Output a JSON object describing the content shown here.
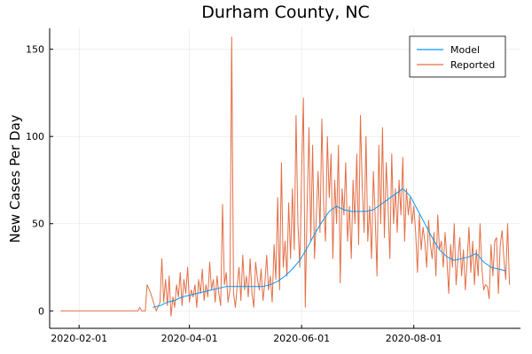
{
  "chart_data": {
    "type": "line",
    "title": "Durham County, NC",
    "xlabel": "",
    "ylabel": "New Cases Per Day",
    "x_axis": {
      "type": "date",
      "range": [
        "2020-01-16",
        "2020-09-28"
      ],
      "ticks": [
        "2020-02-01",
        "2020-04-01",
        "2020-06-01",
        "2020-08-01"
      ]
    },
    "y_axis": {
      "range": [
        -10,
        162
      ],
      "ticks": [
        0,
        50,
        100,
        150
      ]
    },
    "grid": true,
    "legend": "top-right",
    "series": [
      {
        "name": "Model",
        "color": "#009AFA",
        "points": [
          [
            "2020-03-12",
            2
          ],
          [
            "2020-03-16",
            3
          ],
          [
            "2020-03-20",
            5
          ],
          [
            "2020-03-24",
            6
          ],
          [
            "2020-03-28",
            8
          ],
          [
            "2020-04-01",
            9
          ],
          [
            "2020-04-05",
            10
          ],
          [
            "2020-04-09",
            11
          ],
          [
            "2020-04-13",
            12
          ],
          [
            "2020-04-17",
            13
          ],
          [
            "2020-04-21",
            14
          ],
          [
            "2020-04-25",
            14
          ],
          [
            "2020-04-29",
            14
          ],
          [
            "2020-05-03",
            14
          ],
          [
            "2020-05-07",
            14
          ],
          [
            "2020-05-11",
            14
          ],
          [
            "2020-05-15",
            15
          ],
          [
            "2020-05-19",
            17
          ],
          [
            "2020-05-23",
            20
          ],
          [
            "2020-05-27",
            24
          ],
          [
            "2020-05-31",
            29
          ],
          [
            "2020-06-04",
            36
          ],
          [
            "2020-06-08",
            44
          ],
          [
            "2020-06-12",
            51
          ],
          [
            "2020-06-16",
            57
          ],
          [
            "2020-06-20",
            60
          ],
          [
            "2020-06-24",
            58
          ],
          [
            "2020-06-28",
            57
          ],
          [
            "2020-07-02",
            57
          ],
          [
            "2020-07-06",
            57
          ],
          [
            "2020-07-10",
            58
          ],
          [
            "2020-07-14",
            61
          ],
          [
            "2020-07-18",
            64
          ],
          [
            "2020-07-22",
            67
          ],
          [
            "2020-07-26",
            70
          ],
          [
            "2020-07-30",
            66
          ],
          [
            "2020-08-03",
            58
          ],
          [
            "2020-08-07",
            50
          ],
          [
            "2020-08-11",
            42
          ],
          [
            "2020-08-15",
            35
          ],
          [
            "2020-08-19",
            31
          ],
          [
            "2020-08-23",
            29
          ],
          [
            "2020-08-27",
            30
          ],
          [
            "2020-08-31",
            31
          ],
          [
            "2020-09-04",
            33
          ],
          [
            "2020-09-08",
            28
          ],
          [
            "2020-09-12",
            25
          ],
          [
            "2020-09-16",
            24
          ],
          [
            "2020-09-20",
            23
          ]
        ]
      },
      {
        "name": "Reported",
        "color": "#E26F46",
        "points": [
          [
            "2020-01-22",
            0
          ],
          [
            "2020-02-01",
            0
          ],
          [
            "2020-02-15",
            0
          ],
          [
            "2020-03-01",
            0
          ],
          [
            "2020-03-04",
            0
          ],
          [
            "2020-03-05",
            2
          ],
          [
            "2020-03-06",
            0
          ],
          [
            "2020-03-08",
            0
          ],
          [
            "2020-03-09",
            15
          ],
          [
            "2020-03-11",
            10
          ],
          [
            "2020-03-13",
            3
          ],
          [
            "2020-03-14",
            0
          ],
          [
            "2020-03-16",
            5
          ],
          [
            "2020-03-17",
            30
          ],
          [
            "2020-03-18",
            5
          ],
          [
            "2020-03-19",
            18
          ],
          [
            "2020-03-20",
            3
          ],
          [
            "2020-03-21",
            20
          ],
          [
            "2020-03-22",
            -3
          ],
          [
            "2020-03-23",
            8
          ],
          [
            "2020-03-24",
            2
          ],
          [
            "2020-03-25",
            15
          ],
          [
            "2020-03-26",
            8
          ],
          [
            "2020-03-27",
            22
          ],
          [
            "2020-03-28",
            3
          ],
          [
            "2020-03-29",
            18
          ],
          [
            "2020-03-30",
            10
          ],
          [
            "2020-03-31",
            25
          ],
          [
            "2020-04-01",
            5
          ],
          [
            "2020-04-02",
            12
          ],
          [
            "2020-04-03",
            8
          ],
          [
            "2020-04-04",
            15
          ],
          [
            "2020-04-05",
            2
          ],
          [
            "2020-04-06",
            18
          ],
          [
            "2020-04-07",
            10
          ],
          [
            "2020-04-08",
            24
          ],
          [
            "2020-04-09",
            6
          ],
          [
            "2020-04-10",
            15
          ],
          [
            "2020-04-11",
            8
          ],
          [
            "2020-04-12",
            28
          ],
          [
            "2020-04-13",
            12
          ],
          [
            "2020-04-14",
            18
          ],
          [
            "2020-04-15",
            5
          ],
          [
            "2020-04-16",
            20
          ],
          [
            "2020-04-17",
            10
          ],
          [
            "2020-04-18",
            3
          ],
          [
            "2020-04-19",
            61
          ],
          [
            "2020-04-20",
            15
          ],
          [
            "2020-04-21",
            22
          ],
          [
            "2020-04-22",
            5
          ],
          [
            "2020-04-23",
            12
          ],
          [
            "2020-04-24",
            157
          ],
          [
            "2020-04-25",
            10
          ],
          [
            "2020-04-26",
            2
          ],
          [
            "2020-04-27",
            15
          ],
          [
            "2020-04-28",
            25
          ],
          [
            "2020-04-29",
            6
          ],
          [
            "2020-04-30",
            32
          ],
          [
            "2020-05-01",
            12
          ],
          [
            "2020-05-02",
            20
          ],
          [
            "2020-05-03",
            8
          ],
          [
            "2020-05-04",
            30
          ],
          [
            "2020-05-05",
            10
          ],
          [
            "2020-05-06",
            2
          ],
          [
            "2020-05-07",
            28
          ],
          [
            "2020-05-08",
            18
          ],
          [
            "2020-05-09",
            12
          ],
          [
            "2020-05-10",
            24
          ],
          [
            "2020-05-11",
            6
          ],
          [
            "2020-05-12",
            16
          ],
          [
            "2020-05-13",
            32
          ],
          [
            "2020-05-14",
            12
          ],
          [
            "2020-05-15",
            20
          ],
          [
            "2020-05-16",
            5
          ],
          [
            "2020-05-17",
            38
          ],
          [
            "2020-05-18",
            18
          ],
          [
            "2020-05-19",
            65
          ],
          [
            "2020-05-20",
            12
          ],
          [
            "2020-05-21",
            85
          ],
          [
            "2020-05-22",
            25
          ],
          [
            "2020-05-23",
            40
          ],
          [
            "2020-05-24",
            20
          ],
          [
            "2020-05-25",
            62
          ],
          [
            "2020-05-26",
            30
          ],
          [
            "2020-05-27",
            70
          ],
          [
            "2020-05-28",
            35
          ],
          [
            "2020-05-29",
            112
          ],
          [
            "2020-05-30",
            50
          ],
          [
            "2020-05-31",
            25
          ],
          [
            "2020-06-01",
            80
          ],
          [
            "2020-06-02",
            122
          ],
          [
            "2020-06-03",
            2
          ],
          [
            "2020-06-04",
            60
          ],
          [
            "2020-06-05",
            105
          ],
          [
            "2020-06-06",
            40
          ],
          [
            "2020-06-07",
            95
          ],
          [
            "2020-06-08",
            30
          ],
          [
            "2020-06-09",
            55
          ],
          [
            "2020-06-10",
            80
          ],
          [
            "2020-06-11",
            45
          ],
          [
            "2020-06-12",
            110
          ],
          [
            "2020-06-13",
            60
          ],
          [
            "2020-06-14",
            40
          ],
          [
            "2020-06-15",
            100
          ],
          [
            "2020-06-16",
            65
          ],
          [
            "2020-06-17",
            90
          ],
          [
            "2020-06-18",
            30
          ],
          [
            "2020-06-19",
            75
          ],
          [
            "2020-06-20",
            50
          ],
          [
            "2020-06-21",
            95
          ],
          [
            "2020-06-22",
            16
          ],
          [
            "2020-06-23",
            70
          ],
          [
            "2020-06-24",
            55
          ],
          [
            "2020-06-25",
            85
          ],
          [
            "2020-06-26",
            40
          ],
          [
            "2020-06-27",
            60
          ],
          [
            "2020-06-28",
            30
          ],
          [
            "2020-06-29",
            75
          ],
          [
            "2020-06-30",
            50
          ],
          [
            "2020-07-01",
            90
          ],
          [
            "2020-07-02",
            38
          ],
          [
            "2020-07-03",
            112
          ],
          [
            "2020-07-04",
            70
          ],
          [
            "2020-07-05",
            45
          ],
          [
            "2020-07-06",
            100
          ],
          [
            "2020-07-07",
            40
          ],
          [
            "2020-07-08",
            60
          ],
          [
            "2020-07-09",
            30
          ],
          [
            "2020-07-10",
            80
          ],
          [
            "2020-07-11",
            55
          ],
          [
            "2020-07-12",
            20
          ],
          [
            "2020-07-13",
            95
          ],
          [
            "2020-07-14",
            50
          ],
          [
            "2020-07-15",
            105
          ],
          [
            "2020-07-16",
            42
          ],
          [
            "2020-07-17",
            85
          ],
          [
            "2020-07-18",
            60
          ],
          [
            "2020-07-19",
            30
          ],
          [
            "2020-07-20",
            90
          ],
          [
            "2020-07-21",
            50
          ],
          [
            "2020-07-22",
            70
          ],
          [
            "2020-07-23",
            45
          ],
          [
            "2020-07-24",
            75
          ],
          [
            "2020-07-25",
            55
          ],
          [
            "2020-07-26",
            88
          ],
          [
            "2020-07-27",
            40
          ],
          [
            "2020-07-28",
            70
          ],
          [
            "2020-07-29",
            55
          ],
          [
            "2020-07-30",
            65
          ],
          [
            "2020-07-31",
            50
          ],
          [
            "2020-08-01",
            60
          ],
          [
            "2020-08-02",
            45
          ],
          [
            "2020-08-03",
            22
          ],
          [
            "2020-08-04",
            55
          ],
          [
            "2020-08-05",
            35
          ],
          [
            "2020-08-06",
            48
          ],
          [
            "2020-08-07",
            40
          ],
          [
            "2020-08-08",
            25
          ],
          [
            "2020-08-09",
            52
          ],
          [
            "2020-08-10",
            38
          ],
          [
            "2020-08-11",
            30
          ],
          [
            "2020-08-12",
            45
          ],
          [
            "2020-08-13",
            20
          ],
          [
            "2020-08-14",
            55
          ],
          [
            "2020-08-15",
            35
          ],
          [
            "2020-08-16",
            40
          ],
          [
            "2020-08-17",
            25
          ],
          [
            "2020-08-18",
            45
          ],
          [
            "2020-08-19",
            30
          ],
          [
            "2020-08-20",
            10
          ],
          [
            "2020-08-21",
            38
          ],
          [
            "2020-08-22",
            25
          ],
          [
            "2020-08-23",
            50
          ],
          [
            "2020-08-24",
            15
          ],
          [
            "2020-08-25",
            30
          ],
          [
            "2020-08-26",
            42
          ],
          [
            "2020-08-27",
            20
          ],
          [
            "2020-08-28",
            35
          ],
          [
            "2020-08-29",
            12
          ],
          [
            "2020-08-30",
            28
          ],
          [
            "2020-08-31",
            48
          ],
          [
            "2020-09-01",
            22
          ],
          [
            "2020-09-02",
            40
          ],
          [
            "2020-09-03",
            15
          ],
          [
            "2020-09-04",
            35
          ],
          [
            "2020-09-05",
            20
          ],
          [
            "2020-09-06",
            50
          ],
          [
            "2020-09-07",
            25
          ],
          [
            "2020-09-08",
            12
          ],
          [
            "2020-09-09",
            15
          ],
          [
            "2020-09-10",
            14
          ],
          [
            "2020-09-11",
            7
          ],
          [
            "2020-09-12",
            38
          ],
          [
            "2020-09-13",
            20
          ],
          [
            "2020-09-14",
            40
          ],
          [
            "2020-09-15",
            42
          ],
          [
            "2020-09-16",
            10
          ],
          [
            "2020-09-17",
            38
          ],
          [
            "2020-09-18",
            46
          ],
          [
            "2020-09-19",
            30
          ],
          [
            "2020-09-20",
            18
          ],
          [
            "2020-09-21",
            50
          ],
          [
            "2020-09-22",
            15
          ]
        ]
      }
    ]
  }
}
